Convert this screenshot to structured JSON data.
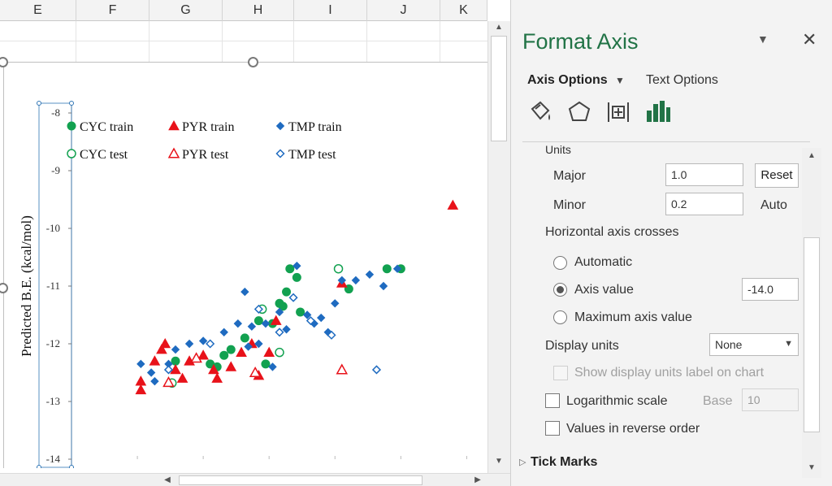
{
  "sheet": {
    "columns": [
      "E",
      "F",
      "G",
      "H",
      "I",
      "J",
      "K"
    ]
  },
  "pane": {
    "title": "Format Axis",
    "tabs": {
      "axis_options": "Axis Options",
      "text_options": "Text Options"
    },
    "icons": [
      "fill-line-icon",
      "effects-icon",
      "size-properties-icon",
      "axis-options-icon"
    ],
    "units_header": "Units",
    "major_label": "Major",
    "major_value": "1.0",
    "major_button": "Reset",
    "minor_label": "Minor",
    "minor_value": "0.2",
    "minor_status": "Auto",
    "crosses_label": "Horizontal axis crosses",
    "radio_automatic": "Automatic",
    "radio_axis_value": "Axis value",
    "axis_value": "-14.0",
    "radio_maximum": "Maximum axis value",
    "display_units_label": "Display units",
    "display_units_value": "None",
    "show_units_label": "Show display units label on chart",
    "log_scale_label": "Logarithmic scale",
    "base_label": "Base",
    "base_value": "10",
    "reverse_label": "Values in reverse order",
    "tick_marks": "Tick Marks",
    "accent_color": "#217346"
  },
  "chart_data": {
    "type": "scatter",
    "ylabel": "Predicted B.E. (kcal/mol)",
    "ylim": [
      -14,
      -8
    ],
    "yticks": [
      "-8",
      "-9",
      "-10",
      "-11",
      "-12",
      "-13",
      "-14"
    ],
    "xlim": [
      -14,
      -8
    ],
    "legend": [
      {
        "name": "CYC train",
        "marker": "circle-filled",
        "color": "#12a150"
      },
      {
        "name": "PYR train",
        "marker": "triangle-filled",
        "color": "#e8121a"
      },
      {
        "name": "TMP train",
        "marker": "diamond-filled",
        "color": "#1f6bc0"
      },
      {
        "name": "CYC test",
        "marker": "circle-open",
        "color": "#12a150"
      },
      {
        "name": "PYR test",
        "marker": "triangle-open",
        "color": "#e8121a"
      },
      {
        "name": "TMP test",
        "marker": "diamond-open",
        "color": "#1f6bc0"
      }
    ],
    "series": [
      {
        "name": "CYC train",
        "points": [
          [
            -12.5,
            -12.3
          ],
          [
            -12.0,
            -12.35
          ],
          [
            -11.9,
            -12.4
          ],
          [
            -11.7,
            -12.1
          ],
          [
            -11.5,
            -11.9
          ],
          [
            -11.3,
            -11.6
          ],
          [
            -11.1,
            -11.65
          ],
          [
            -11.0,
            -11.3
          ],
          [
            -10.9,
            -11.1
          ],
          [
            -11.2,
            -12.35
          ],
          [
            -10.85,
            -10.7
          ],
          [
            -10.75,
            -10.85
          ],
          [
            -10.95,
            -11.35
          ],
          [
            -10.7,
            -11.45
          ],
          [
            -10.0,
            -11.05
          ],
          [
            -9.45,
            -10.7
          ],
          [
            -9.25,
            -10.7
          ],
          [
            -11.8,
            -12.2
          ]
        ]
      },
      {
        "name": "PYR train",
        "points": [
          [
            -13.0,
            -12.65
          ],
          [
            -13.0,
            -12.8
          ],
          [
            -12.8,
            -12.3
          ],
          [
            -12.7,
            -12.1
          ],
          [
            -12.65,
            -12.0
          ],
          [
            -12.5,
            -12.45
          ],
          [
            -12.4,
            -12.6
          ],
          [
            -12.3,
            -12.3
          ],
          [
            -12.1,
            -12.2
          ],
          [
            -11.95,
            -12.45
          ],
          [
            -11.9,
            -12.6
          ],
          [
            -11.7,
            -12.4
          ],
          [
            -11.55,
            -12.15
          ],
          [
            -11.4,
            -12.0
          ],
          [
            -11.3,
            -12.55
          ],
          [
            -11.15,
            -12.15
          ],
          [
            -11.05,
            -11.6
          ],
          [
            -10.1,
            -10.95
          ],
          [
            -8.5,
            -9.6
          ]
        ]
      },
      {
        "name": "TMP train",
        "points": [
          [
            -13.0,
            -12.35
          ],
          [
            -12.85,
            -12.5
          ],
          [
            -12.8,
            -12.65
          ],
          [
            -12.6,
            -12.35
          ],
          [
            -12.5,
            -12.1
          ],
          [
            -12.3,
            -12.0
          ],
          [
            -12.1,
            -11.95
          ],
          [
            -11.8,
            -11.8
          ],
          [
            -11.6,
            -11.65
          ],
          [
            -11.5,
            -11.1
          ],
          [
            -11.4,
            -11.7
          ],
          [
            -11.3,
            -12.0
          ],
          [
            -11.2,
            -11.65
          ],
          [
            -11.0,
            -11.45
          ],
          [
            -10.9,
            -11.75
          ],
          [
            -10.75,
            -10.65
          ],
          [
            -10.6,
            -11.5
          ],
          [
            -10.4,
            -11.55
          ],
          [
            -10.3,
            -11.8
          ],
          [
            -10.2,
            -11.3
          ],
          [
            -10.1,
            -10.9
          ],
          [
            -9.9,
            -10.9
          ],
          [
            -9.7,
            -10.8
          ],
          [
            -9.5,
            -11.0
          ],
          [
            -9.3,
            -10.7
          ],
          [
            -11.1,
            -12.4
          ],
          [
            -10.5,
            -11.65
          ],
          [
            -11.45,
            -12.05
          ]
        ]
      },
      {
        "name": "CYC test",
        "points": [
          [
            -12.55,
            -12.68
          ],
          [
            -11.0,
            -12.15
          ],
          [
            -10.15,
            -10.7
          ],
          [
            -11.25,
            -11.4
          ]
        ]
      },
      {
        "name": "PYR test",
        "points": [
          [
            -12.6,
            -12.67
          ],
          [
            -12.2,
            -12.25
          ],
          [
            -11.35,
            -12.5
          ],
          [
            -10.1,
            -12.45
          ]
        ]
      },
      {
        "name": "TMP test",
        "points": [
          [
            -12.6,
            -12.45
          ],
          [
            -12.0,
            -12.0
          ],
          [
            -11.0,
            -11.8
          ],
          [
            -10.8,
            -11.2
          ],
          [
            -10.55,
            -11.6
          ],
          [
            -10.25,
            -11.85
          ],
          [
            -9.6,
            -12.45
          ],
          [
            -11.3,
            -11.4
          ]
        ]
      }
    ]
  }
}
